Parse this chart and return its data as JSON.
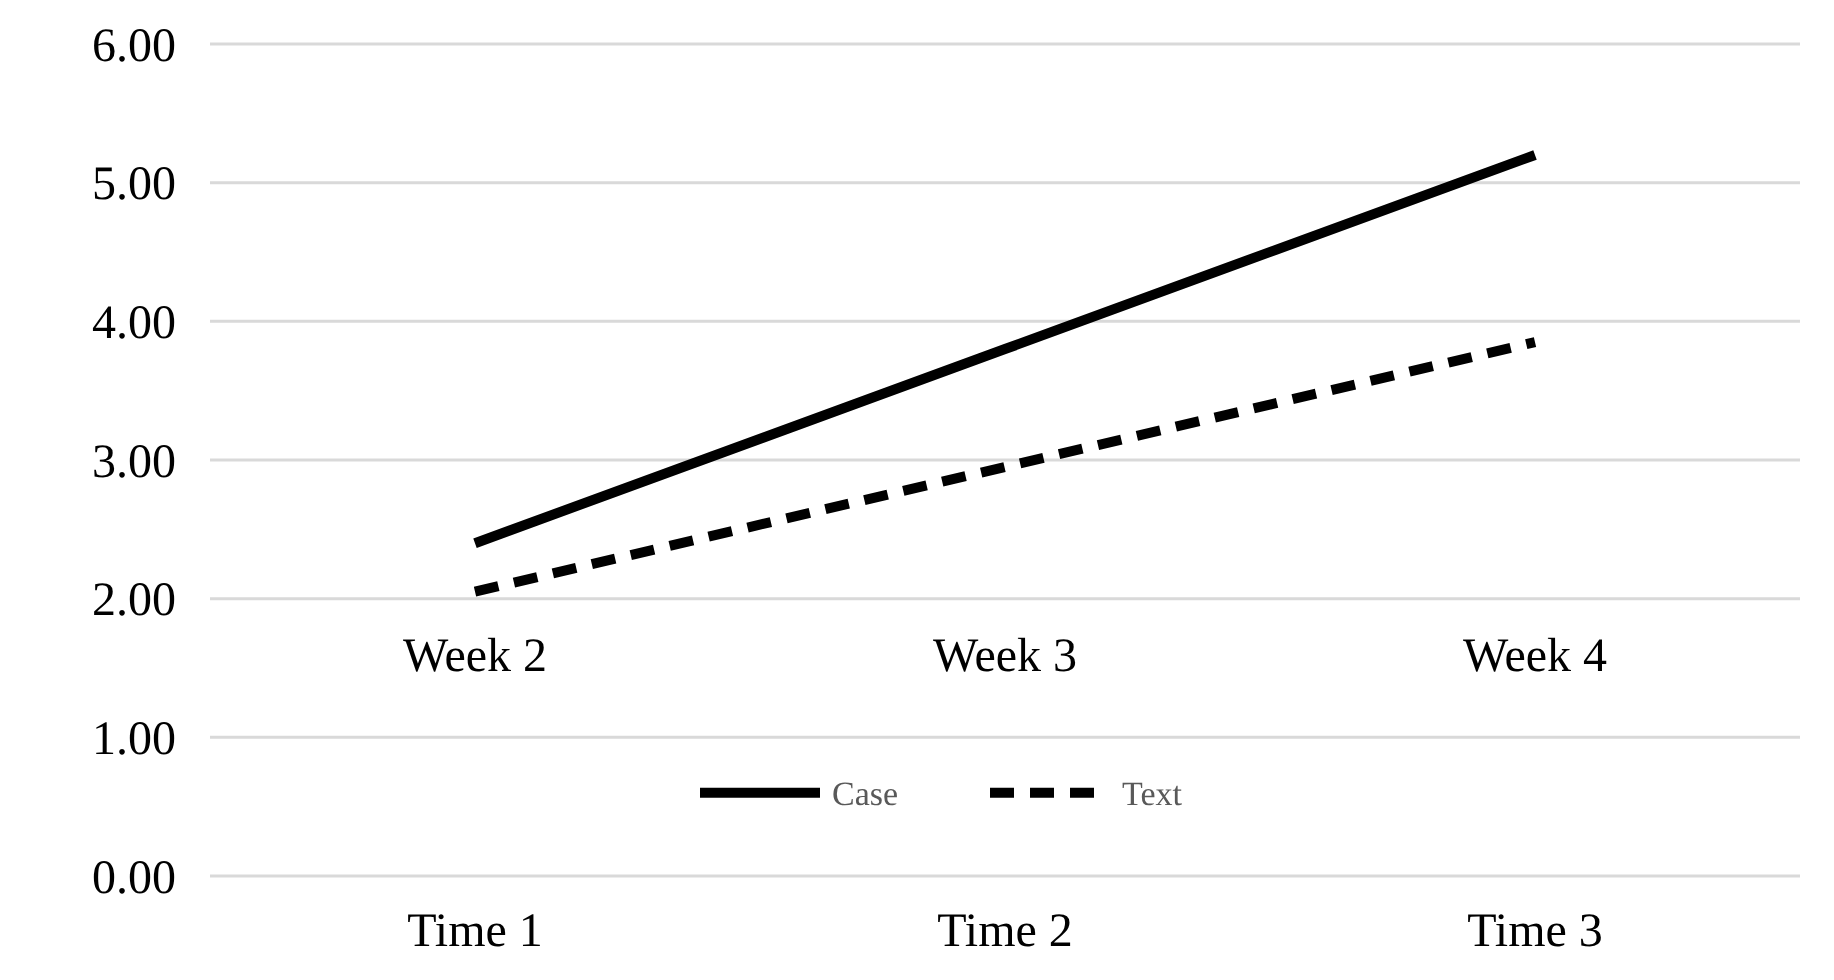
{
  "chart_data": {
    "type": "line",
    "categories": [
      "Time 1",
      "Time 2",
      "Time 3"
    ],
    "series": [
      {
        "name": "Case",
        "color": "#000000",
        "values": [
          2.4,
          3.8,
          5.2
        ],
        "line_style": "solid"
      },
      {
        "name": "Text",
        "color": "#000000",
        "values": [
          2.05,
          2.95,
          3.85
        ],
        "line_style": "dashed"
      }
    ],
    "ylim": [
      0,
      6
    ],
    "yticks": [
      {
        "value": 0,
        "label": "0.00"
      },
      {
        "value": 1,
        "label": "1.00"
      },
      {
        "value": 2,
        "label": "2.00"
      },
      {
        "value": 3,
        "label": "3.00"
      },
      {
        "value": 4,
        "label": "4.00"
      },
      {
        "value": 5,
        "label": "5.00"
      },
      {
        "value": 6,
        "label": "6.00"
      }
    ],
    "grid": "y",
    "legend": "bottom",
    "marker": "none",
    "annotations": [
      "Week 2",
      "Week 3",
      "Week 4"
    ]
  }
}
